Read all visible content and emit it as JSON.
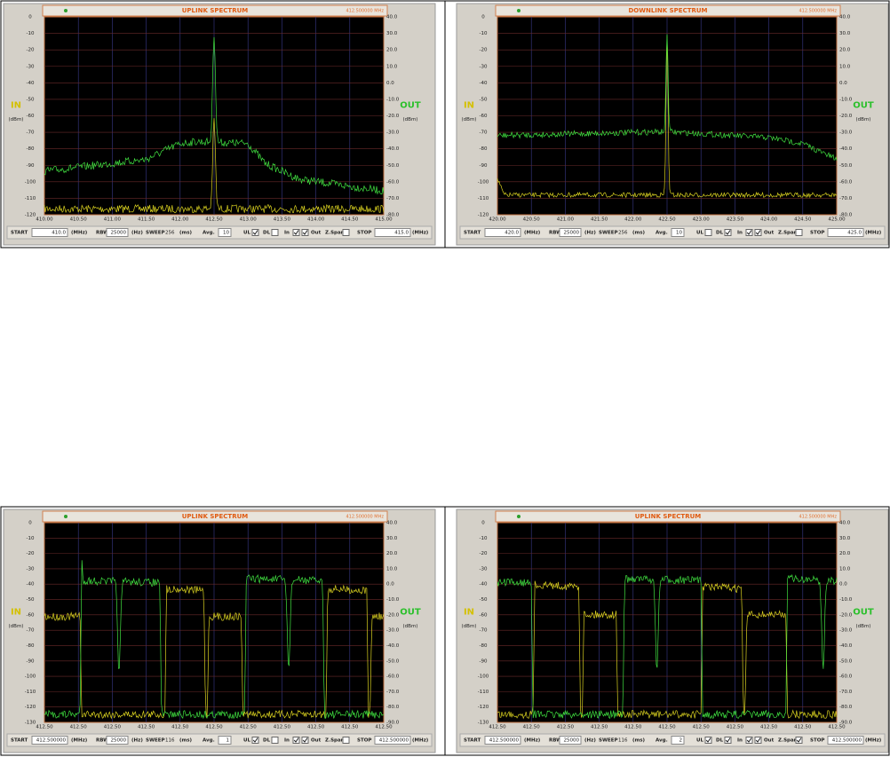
{
  "panels": [
    {
      "title": "UPLINK SPECTRUM",
      "frequency": "412.500000 MHz",
      "in_label": "IN",
      "out_label": "OUT",
      "in_unit": "(dBm)",
      "out_unit": "(dBm)",
      "left_ticks": [
        "0",
        "-10",
        "-20",
        "-30",
        "-40",
        "-50",
        "-60",
        "-70",
        "-80",
        "-90",
        "-100",
        "-110",
        "-120"
      ],
      "right_ticks": [
        "40.0",
        "30.0",
        "20.0",
        "10.0",
        "0.0",
        "-10.0",
        "-20.0",
        "-30.0",
        "-40.0",
        "-50.0",
        "-60.0",
        "-70.0",
        "-80.0"
      ],
      "x_ticks": [
        "410.00",
        "410.50",
        "411.00",
        "411.50",
        "412.00",
        "412.50",
        "413.00",
        "413.50",
        "414.00",
        "414.50",
        "415.00"
      ],
      "controls": {
        "start_label": "START",
        "start": "410.0",
        "start_unit": "(MHz)",
        "rbw_label": "RBW",
        "rbw": "25000",
        "rbw_unit": "(Hz)",
        "sweep_label": "SWEEP",
        "sweep": "256",
        "sweep_unit": "(ms)",
        "avg_label": "Avg.",
        "avg": "10",
        "ul_label": "UL",
        "ul": true,
        "dl_label": "DL",
        "dl": false,
        "in_label": "In",
        "in": true,
        "out_label": "Out",
        "out": true,
        "zspan_label": "Z.Span",
        "zspan": false,
        "stop_label": "STOP",
        "stop": "415.0",
        "stop_unit": "(MHz)"
      }
    },
    {
      "title": "DOWNLINK SPECTRUM",
      "frequency": "412.500000 MHz",
      "in_label": "IN",
      "out_label": "OUT",
      "in_unit": "(dBm)",
      "out_unit": "(dBm)",
      "left_ticks": [
        "0",
        "-10",
        "-20",
        "-30",
        "-40",
        "-50",
        "-60",
        "-70",
        "-80",
        "-90",
        "-100",
        "-110",
        "-120"
      ],
      "right_ticks": [
        "40.0",
        "30.0",
        "20.0",
        "10.0",
        "0.0",
        "-10.0",
        "-20.0",
        "-30.0",
        "-40.0",
        "-50.0",
        "-60.0",
        "-70.0",
        "-80.0"
      ],
      "x_ticks": [
        "420.00",
        "420.50",
        "421.00",
        "421.50",
        "422.00",
        "422.50",
        "423.00",
        "423.50",
        "424.00",
        "424.50",
        "425.00"
      ],
      "controls": {
        "start_label": "START",
        "start": "420.0",
        "start_unit": "(MHz)",
        "rbw_label": "RBW",
        "rbw": "25000",
        "rbw_unit": "(Hz)",
        "sweep_label": "SWEEP",
        "sweep": "256",
        "sweep_unit": "(ms)",
        "avg_label": "Avg.",
        "avg": "10",
        "ul_label": "UL",
        "ul": false,
        "dl_label": "DL",
        "dl": true,
        "in_label": "In",
        "in": true,
        "out_label": "Out",
        "out": true,
        "zspan_label": "Z.Span",
        "zspan": false,
        "stop_label": "STOP",
        "stop": "425.0",
        "stop_unit": "(MHz)"
      }
    },
    {
      "title": "UPLINK SPECTRUM",
      "frequency": "412.500000 MHz",
      "in_label": "IN",
      "out_label": "OUT",
      "in_unit": "(dBm)",
      "out_unit": "(dBm)",
      "left_ticks": [
        "0",
        "-10",
        "-20",
        "-30",
        "-40",
        "-50",
        "-60",
        "-70",
        "-80",
        "-90",
        "-100",
        "-110",
        "-120",
        "-130"
      ],
      "right_ticks": [
        "40.0",
        "30.0",
        "20.0",
        "10.0",
        "0.0",
        "-10.0",
        "-20.0",
        "-30.0",
        "-40.0",
        "-50.0",
        "-60.0",
        "-70.0",
        "-80.0",
        "-90.0"
      ],
      "x_ticks": [
        "412.50",
        "412.50",
        "412.50",
        "412.50",
        "412.50",
        "412.50",
        "412.50",
        "412.50",
        "412.50",
        "412.50",
        "412.50"
      ],
      "controls": {
        "start_label": "START",
        "start": "412.500000",
        "start_unit": "(MHz)",
        "rbw_label": "RBW",
        "rbw": "25000",
        "rbw_unit": "(Hz)",
        "sweep_label": "SWEEP",
        "sweep": "116",
        "sweep_unit": "(ms)",
        "avg_label": "Avg.",
        "avg": "1",
        "ul_label": "UL",
        "ul": true,
        "dl_label": "DL",
        "dl": false,
        "in_label": "In",
        "in": true,
        "out_label": "Out",
        "out": true,
        "zspan_label": "Z.Span",
        "zspan": false,
        "stop_label": "STOP",
        "stop": "412.500000",
        "stop_unit": "(MHz)"
      }
    },
    {
      "title": "UPLINK SPECTRUM",
      "frequency": "412.500000 MHz",
      "in_label": "IN",
      "out_label": "OUT",
      "in_unit": "(dBm)",
      "out_unit": "(dBm)",
      "left_ticks": [
        "0",
        "-10",
        "-20",
        "-30",
        "-40",
        "-50",
        "-60",
        "-70",
        "-80",
        "-90",
        "-100",
        "-110",
        "-120",
        "-130"
      ],
      "right_ticks": [
        "40.0",
        "30.0",
        "20.0",
        "10.0",
        "0.0",
        "-10.0",
        "-20.0",
        "-30.0",
        "-40.0",
        "-50.0",
        "-60.0",
        "-70.0",
        "-80.0",
        "-90.0"
      ],
      "x_ticks": [
        "412.50",
        "412.50",
        "412.50",
        "412.50",
        "412.50",
        "412.50",
        "412.50",
        "412.50",
        "412.50",
        "412.50",
        "412.50"
      ],
      "controls": {
        "start_label": "START",
        "start": "412.500000",
        "start_unit": "(MHz)",
        "rbw_label": "RBW",
        "rbw": "25000",
        "rbw_unit": "(Hz)",
        "sweep_label": "SWEEP",
        "sweep": "116",
        "sweep_unit": "(ms)",
        "avg_label": "Avg.",
        "avg": "2",
        "ul_label": "UL",
        "ul": true,
        "dl_label": "DL",
        "dl": true,
        "in_label": "In",
        "in": true,
        "out_label": "Out",
        "out": true,
        "zspan_label": "Z.Span",
        "zspan": true,
        "stop_label": "STOP",
        "stop": "412.500000",
        "stop_unit": "(MHz)"
      }
    }
  ]
}
